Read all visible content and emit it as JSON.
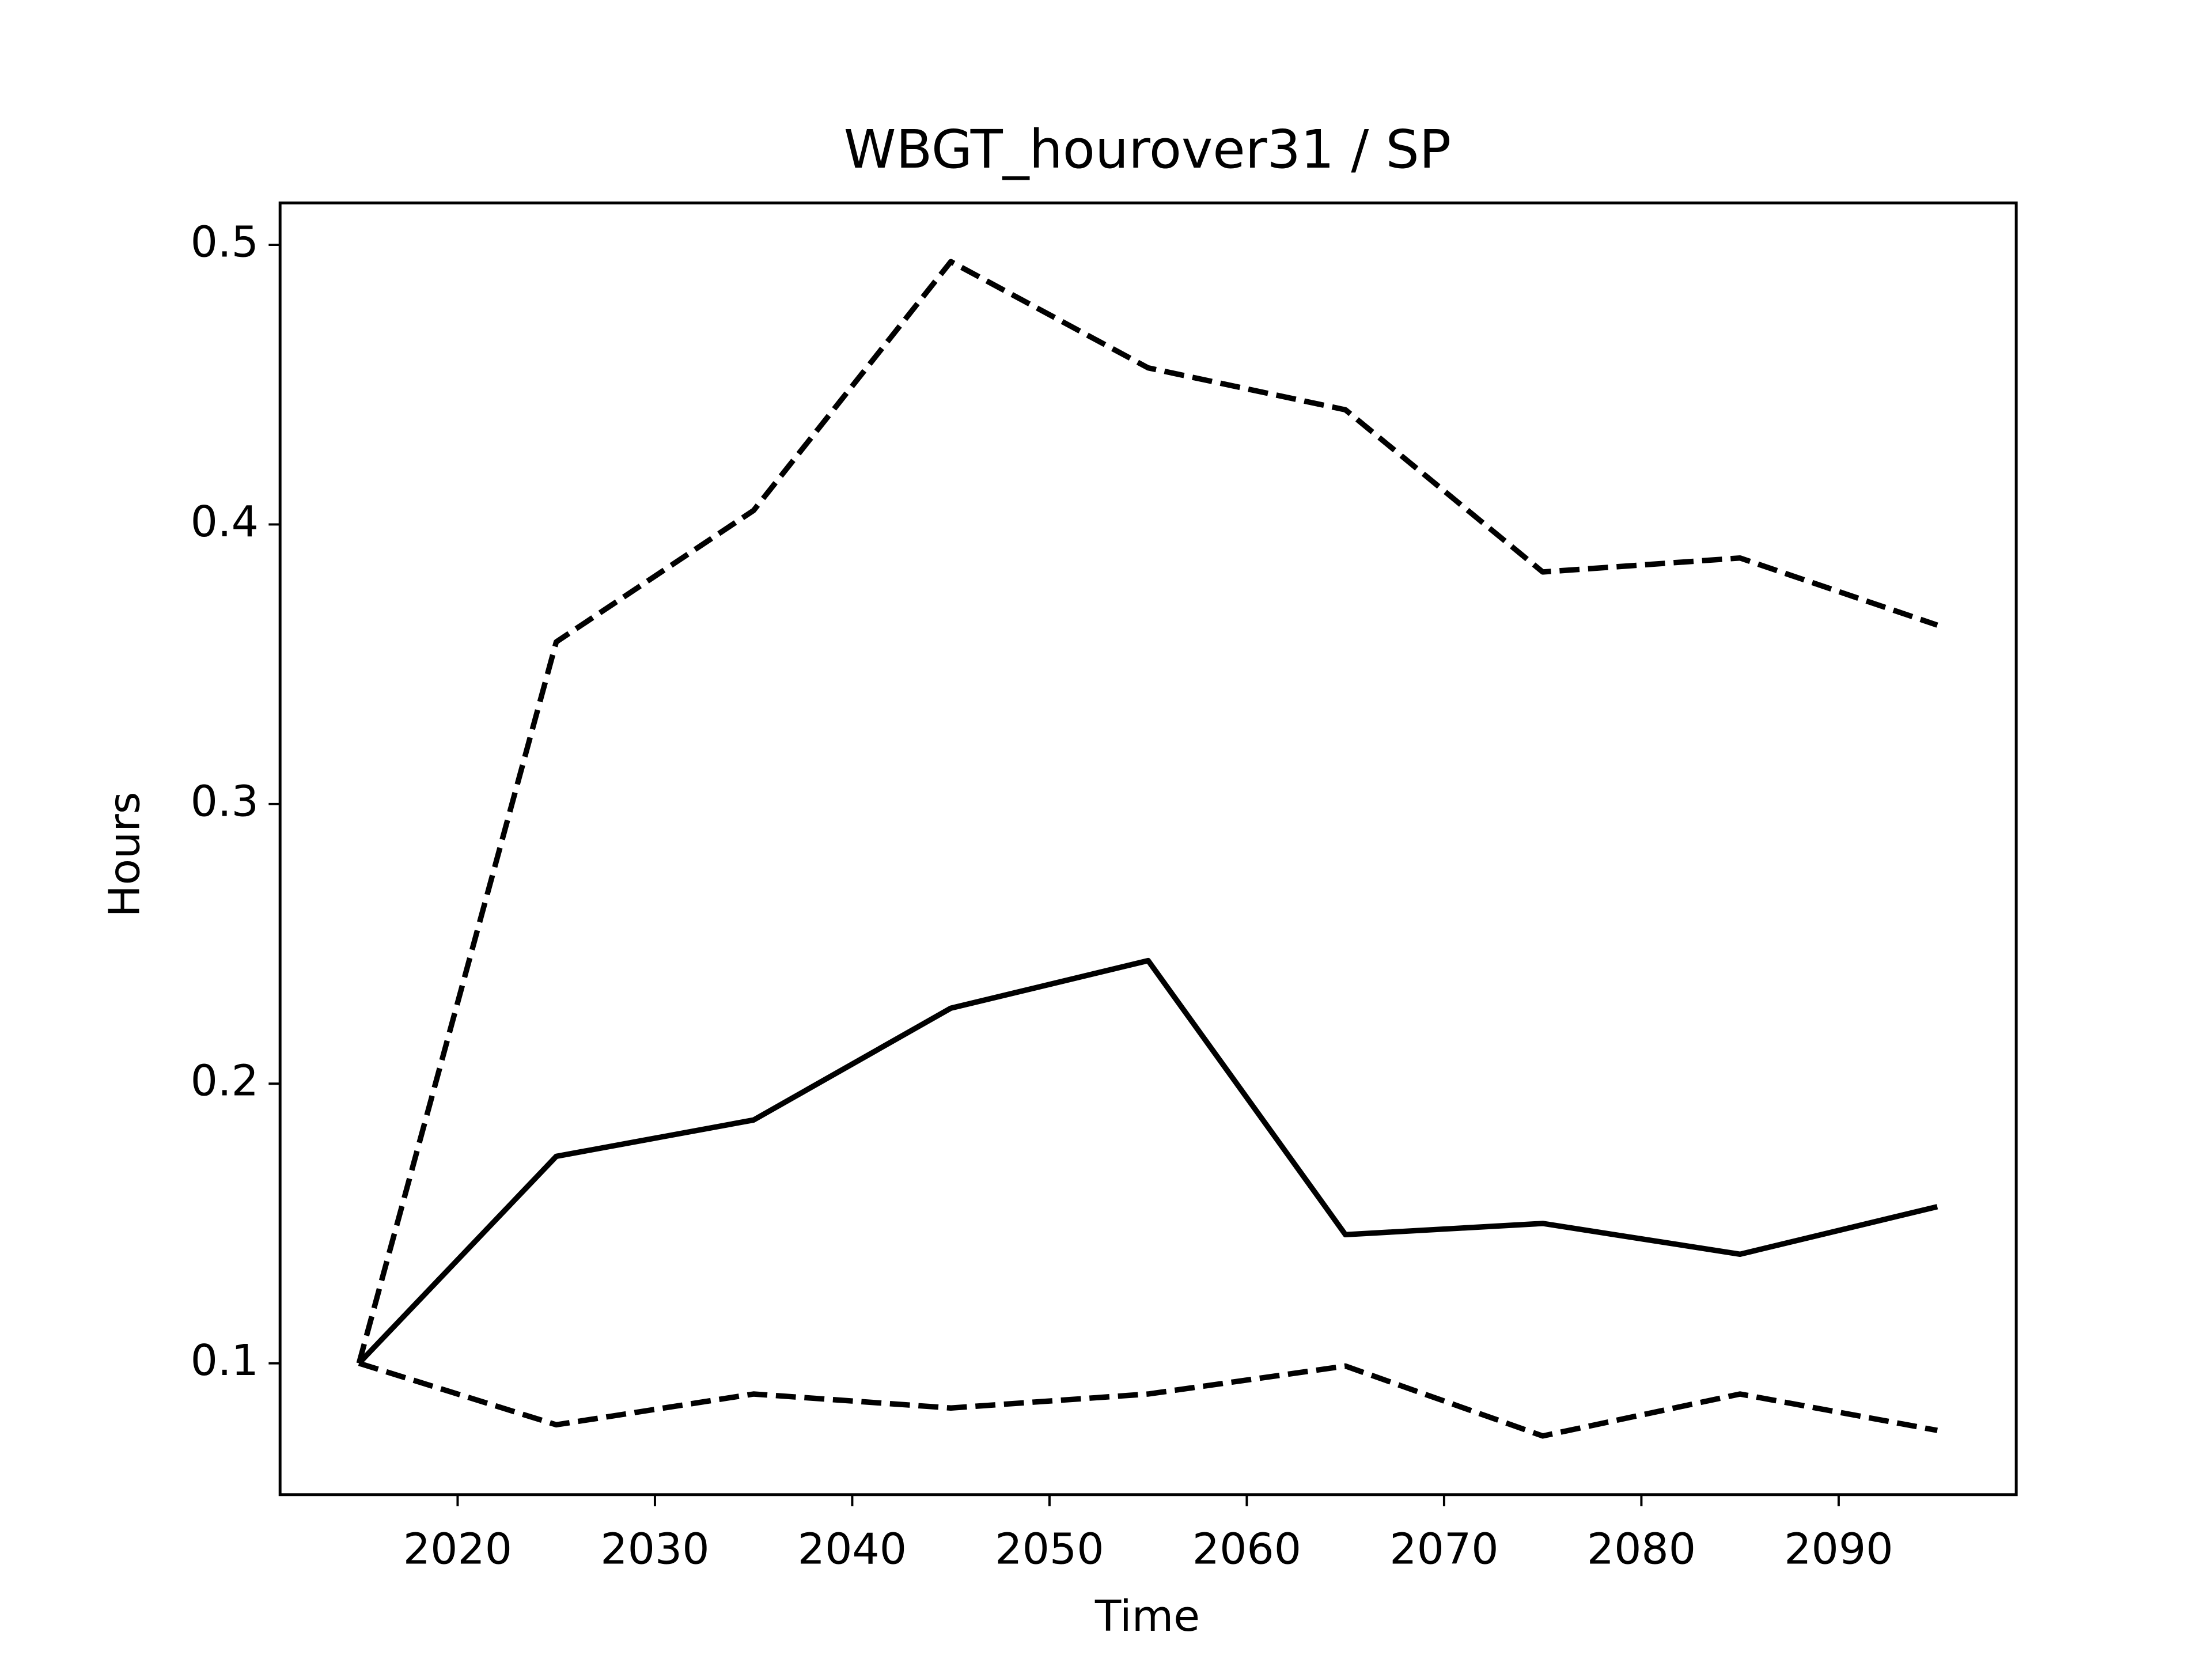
{
  "chart_data": {
    "type": "line",
    "title": "WBGT_hourover31 / SP",
    "xlabel": "Time",
    "ylabel": "Hours",
    "x": [
      2015,
      2025,
      2035,
      2045,
      2055,
      2065,
      2075,
      2085,
      2095
    ],
    "series": [
      {
        "color": "#000000",
        "linestyle": "solid",
        "values": [
          0.1,
          0.174,
          0.187,
          0.227,
          0.244,
          0.146,
          0.15,
          0.139,
          0.156
        ]
      },
      {
        "color": "#000000",
        "linestyle": "dashed",
        "values": [
          0.1,
          0.358,
          0.405,
          0.494,
          0.456,
          0.441,
          0.383,
          0.388,
          0.364
        ]
      },
      {
        "color": "#000000",
        "linestyle": "dashed",
        "values": [
          0.1,
          0.078,
          0.089,
          0.084,
          0.089,
          0.099,
          0.074,
          0.089,
          0.076
        ]
      }
    ],
    "xlim": [
      2011,
      2099
    ],
    "ylim": [
      0.053,
      0.515
    ],
    "xticks": [
      2020,
      2030,
      2040,
      2050,
      2060,
      2070,
      2080,
      2090
    ],
    "yticks": [
      0.1,
      0.2,
      0.3,
      0.4,
      0.5
    ],
    "grid": false
  }
}
